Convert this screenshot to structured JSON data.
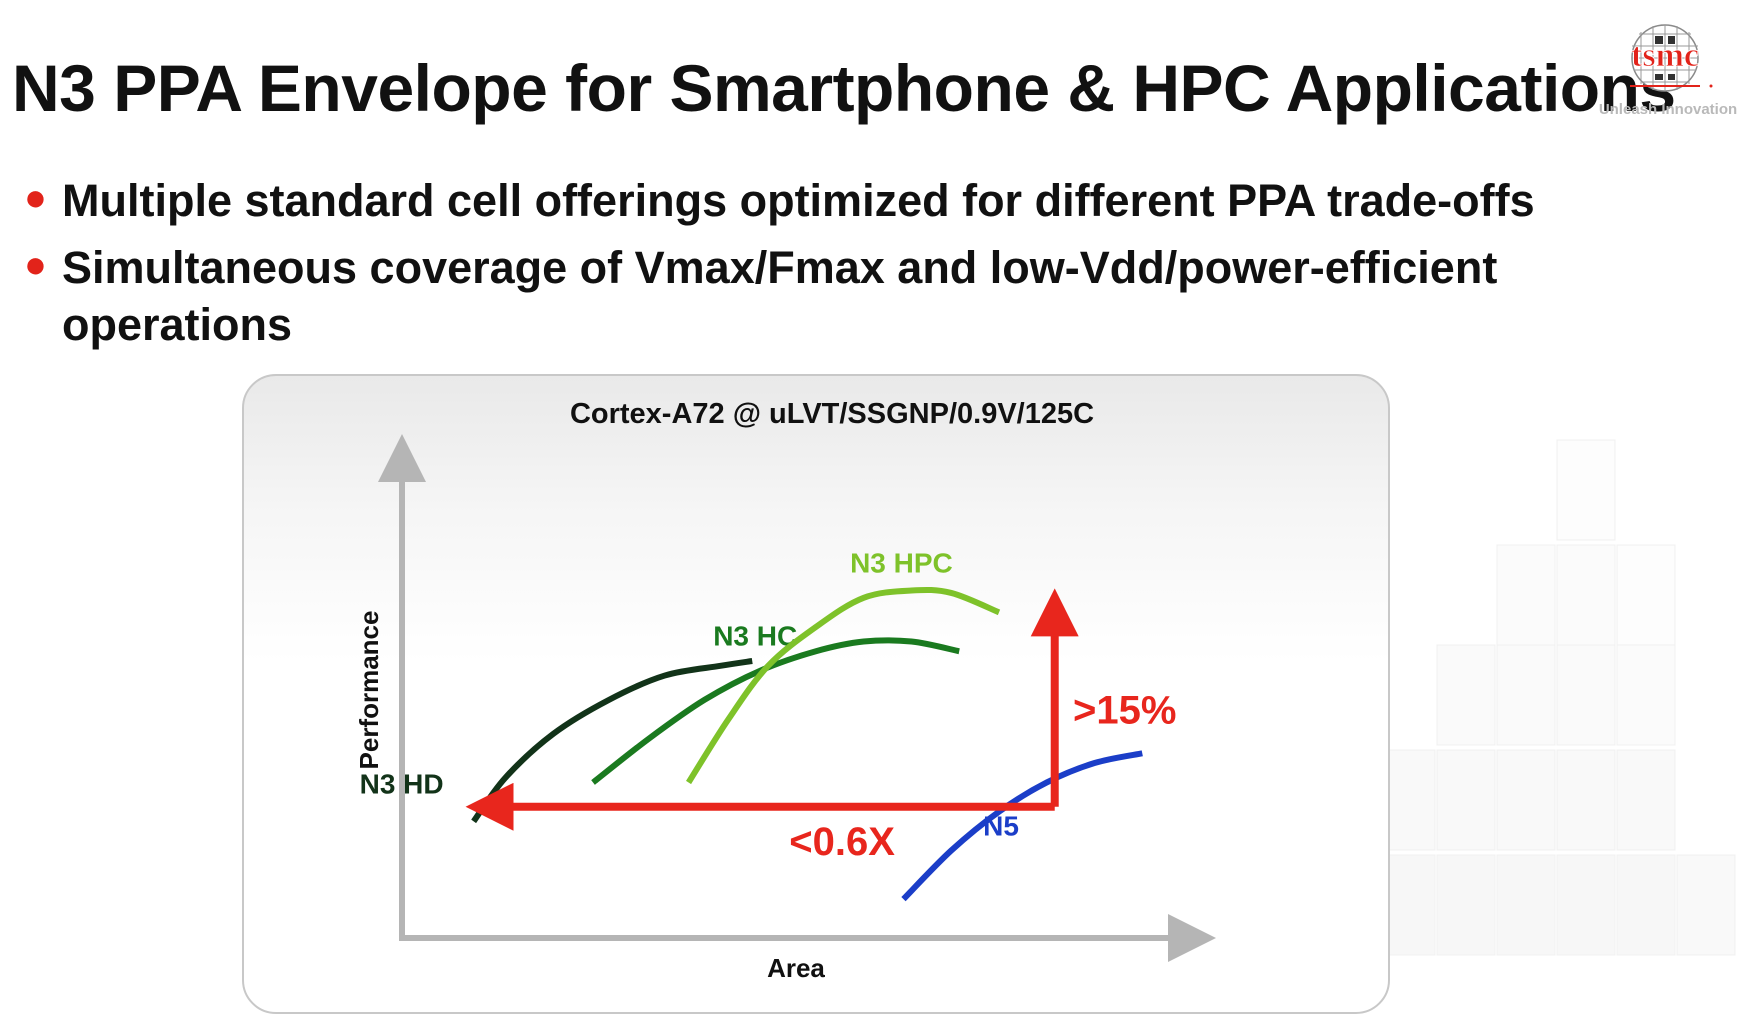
{
  "slide": {
    "title": "N3 PPA Envelope for Smartphone & HPC Applications",
    "bullets": [
      "Multiple standard cell offerings optimized for different PPA trade-offs",
      "Simultaneous coverage of Vmax/Fmax and low-Vdd/power-efficient operations"
    ],
    "bullet_color": "#e2231a"
  },
  "logo": {
    "name": "tsmc",
    "tagline": "Unleash Innovation",
    "icon": "tsmc-wafer-logo-icon",
    "color": "#e2231a"
  },
  "chart_data": {
    "type": "line",
    "title": "Cortex-A72 @ uLVT/SSGNP/0.9V/125C",
    "xlabel": "Area",
    "ylabel": "Performance",
    "xlim": [
      0,
      100
    ],
    "ylim": [
      0,
      100
    ],
    "axis_ticks": "none",
    "grid": false,
    "series": [
      {
        "name": "N3 HD",
        "color": "#123319",
        "x": [
          9,
          13,
          19,
          26,
          33,
          40,
          44
        ],
        "y": [
          24,
          33,
          42,
          49,
          54,
          56,
          57
        ]
      },
      {
        "name": "N3 HC",
        "color": "#1a7a1f",
        "x": [
          24,
          31,
          38,
          45,
          52,
          58,
          64,
          70
        ],
        "y": [
          32,
          41,
          49,
          55,
          59,
          61,
          61,
          59
        ]
      },
      {
        "name": "N3 HPC",
        "color": "#7ec22a",
        "x": [
          36,
          41,
          46,
          52,
          58,
          64,
          69,
          75
        ],
        "y": [
          32,
          45,
          56,
          64,
          70,
          71.5,
          71,
          67
        ]
      },
      {
        "name": "N5",
        "color": "#1b3ec8",
        "x": [
          63,
          69,
          75,
          81,
          87,
          93
        ],
        "y": [
          8,
          18,
          26,
          32,
          36,
          38
        ]
      }
    ],
    "annotations": [
      {
        "label": "<0.6X",
        "color": "#e8261d",
        "from": [
          82,
          27
        ],
        "to": [
          11,
          27
        ]
      },
      {
        "label": ">15%",
        "color": "#e8261d",
        "from": [
          82,
          27
        ],
        "to": [
          82,
          67
        ]
      }
    ]
  }
}
